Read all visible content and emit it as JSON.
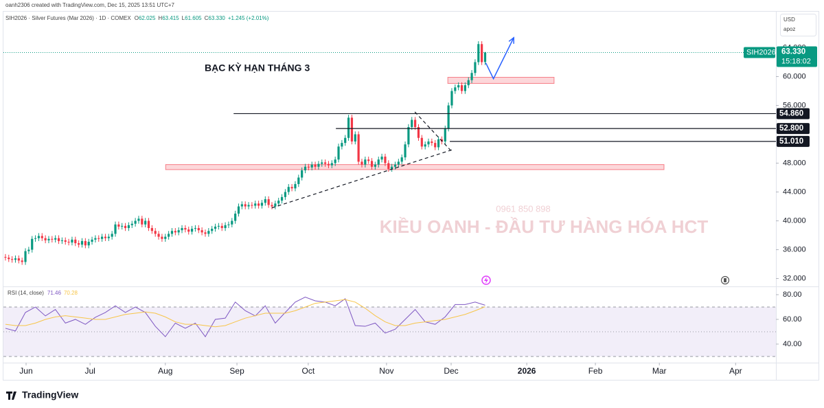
{
  "header": {
    "credit": "oanh2306 created with TradingView.com, Dec 15, 2025 13:51 UTC+7",
    "currency": "USD",
    "unit": "apoz",
    "brand": "TradingView"
  },
  "chart_data": [
    {
      "type": "candlestick",
      "symbol": "SIH2026 · Silver Futures (Mar 2026) · 1D · COMEX",
      "ohlc": [
        {
          "key": "O",
          "value": "62.025"
        },
        {
          "key": "H",
          "value": "63.415"
        },
        {
          "key": "L",
          "value": "61.605"
        },
        {
          "key": "C",
          "value": "63.330"
        }
      ],
      "change": "+1.245 (+2.01%)",
      "annotation": "BẠC KỲ HẠN THÁNG 3",
      "watermark": [
        "0961 850 898",
        "KIỀU OANH - ĐẦU TƯ HÀNG HÓA HCT"
      ],
      "ticker": "SIH2026",
      "price_label": "63.330",
      "countdown": "15:18:02",
      "up_color": "#089981",
      "down_color": "#f23645",
      "open": [
        35.0,
        34.9,
        34.7,
        34.6,
        34.8,
        34.5,
        34.3,
        35.8,
        36.0,
        37.5,
        37.6,
        37.9,
        37.6,
        37.3,
        37.5,
        37.4,
        37.6,
        37.2,
        37.3,
        37.1,
        37.0,
        37.4,
        36.9,
        36.7,
        37.2,
        36.6,
        37.1,
        37.4,
        37.6,
        37.5,
        37.8,
        37.6,
        37.8,
        38.2,
        39.5,
        39.2,
        39.3,
        39.0,
        39.4,
        39.6,
        40.0,
        40.3,
        39.5,
        40.0,
        39.0,
        38.6,
        38.2,
        37.8,
        37.5,
        37.8,
        38.2,
        38.6,
        38.4,
        38.7,
        39.0,
        38.8,
        38.5,
        38.9,
        39.0,
        38.7,
        38.4,
        38.2,
        38.6,
        38.9,
        39.2,
        39.3,
        39.0,
        39.4,
        39.5,
        40.0,
        41.0,
        42.0,
        42.3,
        42.0,
        42.2,
        42.1,
        42.4,
        42.1,
        42.5,
        43.0,
        42.2,
        42.0,
        42.4,
        42.8,
        43.3,
        44.0,
        44.7,
        44.5,
        45.1,
        46.0,
        47.0,
        47.5,
        47.4,
        47.8,
        47.5,
        47.9,
        48.1,
        47.9,
        47.7,
        48.0,
        48.5,
        50.3,
        50.8,
        51.5,
        54.3,
        51.0,
        52.0,
        48.2,
        47.8,
        48.5,
        48.3,
        47.5,
        47.8,
        48.5,
        48.9,
        48.0,
        47.2,
        47.5,
        47.8,
        48.2,
        48.8,
        50.6,
        53.0,
        54.0,
        53.0,
        51.5,
        50.3,
        50.6,
        51.0,
        50.8,
        50.2,
        51.3,
        51.0,
        52.8,
        56.0,
        58.0,
        58.5,
        58.8,
        58.0,
        58.8,
        59.5,
        60.5,
        62.0,
        64.5,
        62.025
      ],
      "high": [
        35.4,
        35.3,
        35.1,
        35.2,
        35.2,
        34.9,
        36.2,
        36.4,
        37.9,
        38.0,
        38.3,
        38.3,
        38.0,
        37.9,
        37.9,
        38.0,
        38.0,
        37.7,
        37.7,
        37.5,
        37.8,
        37.8,
        37.3,
        37.6,
        37.6,
        37.5,
        37.8,
        38.0,
        38.0,
        38.2,
        38.2,
        38.2,
        38.6,
        39.9,
        39.9,
        39.7,
        39.7,
        39.8,
        40.0,
        40.4,
        40.7,
        40.7,
        40.4,
        40.4,
        39.4,
        39.0,
        38.6,
        38.2,
        38.2,
        38.6,
        39.0,
        39.0,
        39.1,
        39.4,
        39.4,
        39.2,
        39.3,
        39.4,
        39.4,
        39.1,
        38.8,
        39.0,
        39.3,
        39.6,
        39.7,
        39.7,
        39.8,
        39.9,
        40.4,
        41.4,
        42.4,
        42.7,
        42.7,
        42.6,
        42.6,
        42.8,
        42.8,
        42.9,
        43.4,
        43.4,
        42.6,
        42.8,
        43.2,
        43.7,
        44.4,
        45.1,
        45.1,
        45.5,
        46.4,
        47.4,
        47.9,
        47.9,
        48.2,
        48.2,
        48.3,
        48.5,
        48.5,
        48.3,
        48.4,
        48.9,
        50.7,
        51.2,
        51.9,
        54.7,
        54.7,
        52.4,
        52.4,
        48.6,
        48.9,
        48.9,
        48.7,
        48.2,
        48.9,
        49.3,
        49.3,
        48.4,
        47.9,
        48.2,
        48.6,
        49.2,
        51.0,
        53.4,
        54.4,
        54.4,
        53.4,
        51.9,
        51.0,
        51.4,
        51.4,
        51.2,
        51.7,
        51.7,
        53.2,
        56.4,
        58.4,
        58.9,
        59.2,
        59.2,
        59.2,
        59.9,
        60.9,
        62.4,
        64.9,
        64.9,
        63.415
      ],
      "low": [
        34.5,
        34.3,
        34.2,
        34.2,
        34.1,
        33.9,
        33.9,
        35.4,
        35.6,
        37.1,
        37.2,
        37.2,
        36.9,
        36.9,
        37.0,
        37.0,
        36.8,
        36.8,
        36.7,
        36.6,
        36.6,
        36.5,
        36.3,
        36.3,
        36.2,
        36.2,
        36.7,
        37.0,
        37.1,
        37.1,
        37.2,
        37.2,
        37.4,
        37.8,
        38.8,
        38.8,
        38.6,
        38.6,
        39.0,
        39.2,
        39.6,
        39.1,
        39.1,
        38.6,
        38.2,
        37.8,
        37.4,
        37.1,
        37.1,
        37.4,
        37.8,
        38.0,
        38.0,
        38.3,
        38.4,
        38.1,
        38.1,
        38.5,
        38.3,
        38.0,
        37.8,
        37.8,
        38.2,
        38.5,
        38.8,
        38.6,
        38.6,
        39.0,
        39.1,
        39.6,
        40.6,
        41.6,
        41.6,
        41.6,
        41.7,
        41.7,
        41.7,
        41.7,
        42.1,
        41.8,
        41.6,
        41.6,
        42.0,
        42.4,
        42.9,
        43.6,
        44.1,
        44.1,
        44.7,
        45.6,
        46.6,
        47.0,
        47.0,
        47.1,
        47.1,
        47.5,
        47.5,
        47.3,
        47.3,
        47.6,
        48.1,
        49.9,
        50.4,
        51.1,
        50.6,
        50.6,
        47.8,
        47.4,
        47.4,
        47.9,
        47.1,
        47.1,
        47.4,
        48.1,
        47.6,
        46.8,
        46.8,
        47.1,
        47.4,
        47.8,
        48.4,
        50.2,
        52.6,
        52.6,
        51.1,
        49.9,
        49.9,
        50.2,
        50.4,
        49.8,
        49.8,
        50.6,
        50.6,
        52.4,
        55.6,
        57.6,
        58.1,
        57.6,
        57.6,
        58.4,
        59.1,
        60.1,
        61.6,
        61.6,
        61.605
      ],
      "close": [
        34.9,
        34.7,
        34.6,
        34.8,
        34.5,
        34.3,
        35.8,
        36.0,
        37.5,
        37.6,
        37.9,
        37.6,
        37.3,
        37.5,
        37.4,
        37.6,
        37.2,
        37.3,
        37.1,
        37.0,
        37.4,
        36.9,
        36.7,
        37.2,
        36.6,
        37.1,
        37.4,
        37.6,
        37.5,
        37.8,
        37.6,
        37.8,
        38.2,
        39.5,
        39.2,
        39.3,
        39.0,
        39.4,
        39.6,
        40.0,
        40.3,
        39.5,
        40.0,
        39.0,
        38.6,
        38.2,
        37.8,
        37.5,
        37.8,
        38.2,
        38.6,
        38.4,
        38.7,
        39.0,
        38.8,
        38.5,
        38.9,
        39.0,
        38.7,
        38.4,
        38.2,
        38.6,
        38.9,
        39.2,
        39.3,
        39.0,
        39.4,
        39.5,
        40.0,
        41.0,
        42.0,
        42.3,
        42.0,
        42.2,
        42.1,
        42.4,
        42.1,
        42.5,
        43.0,
        42.2,
        42.0,
        42.4,
        42.8,
        43.3,
        44.0,
        44.7,
        44.5,
        45.1,
        46.0,
        47.0,
        47.5,
        47.4,
        47.8,
        47.5,
        47.9,
        48.1,
        47.9,
        47.7,
        48.0,
        48.5,
        50.3,
        50.8,
        51.5,
        54.3,
        51.0,
        52.0,
        48.2,
        47.8,
        48.5,
        48.3,
        47.5,
        47.8,
        48.5,
        48.9,
        48.0,
        47.2,
        47.5,
        47.8,
        48.2,
        48.8,
        50.6,
        53.0,
        54.0,
        53.0,
        51.5,
        50.3,
        50.6,
        51.0,
        50.8,
        50.2,
        51.3,
        51.0,
        52.8,
        56.0,
        58.0,
        58.5,
        58.8,
        58.0,
        58.8,
        59.5,
        60.5,
        62.0,
        64.5,
        62.0,
        63.33
      ],
      "xlim": [
        -0.6,
        231.3
      ],
      "xticks": [
        {
          "value": 6.2,
          "label": "Jun"
        },
        {
          "value": 25.4,
          "label": "Jul"
        },
        {
          "value": 48.0,
          "label": "Aug"
        },
        {
          "value": 69.5,
          "label": "Sep"
        },
        {
          "value": 90.9,
          "label": "Oct"
        },
        {
          "value": 114.4,
          "label": "Nov"
        },
        {
          "value": 133.8,
          "label": "Dec"
        },
        {
          "value": 156.5,
          "label": "2026"
        },
        {
          "value": 177.1,
          "label": "Feb"
        },
        {
          "value": 196.3,
          "label": "Mar"
        },
        {
          "value": 219.2,
          "label": "Apr"
        }
      ],
      "ylim": [
        31.1,
        68.9
      ],
      "yticks": [
        {
          "value": 32,
          "label": "32.000"
        },
        {
          "value": 36,
          "label": "36.000"
        },
        {
          "value": 40,
          "label": "40.000"
        },
        {
          "value": 44,
          "label": "44.000"
        },
        {
          "value": 48,
          "label": "48.000"
        },
        {
          "value": 56,
          "label": "56.000"
        },
        {
          "value": 60,
          "label": "60.000"
        },
        {
          "value": 64,
          "label": "64.000"
        }
      ],
      "hlines": [
        {
          "value": 54.86,
          "label": "54.860",
          "x_start": 68.5
        },
        {
          "value": 52.8,
          "label": "52.800",
          "x_start": 99.2
        },
        {
          "value": 51.01,
          "label": "51.010",
          "x_start": 133.4
        }
      ],
      "zones": [
        {
          "x": [
            48.1,
            197.7
          ],
          "y": [
            47.1,
            47.8
          ]
        },
        {
          "x": [
            132.8,
            164.7
          ],
          "y": [
            59.05,
            59.9
          ]
        }
      ],
      "trendlines": [
        {
          "x": [
            80,
            134.4
          ],
          "y": [
            41.8,
            49.9
          ]
        },
        {
          "x": [
            122.9,
            134.2
          ],
          "y": [
            55.1,
            49.5
          ]
        }
      ],
      "arrow": {
        "x": [
          144.2,
          146.5,
          152.6
        ],
        "y": [
          61.9,
          59.7,
          65.4
        ],
        "color": "#2962ff"
      }
    },
    {
      "type": "line",
      "title": "RSI (14, close)",
      "x": [
        0,
        3,
        6,
        9,
        12,
        15,
        18,
        21,
        24,
        27,
        30,
        33,
        36,
        39,
        42,
        45,
        48,
        51,
        54,
        57,
        60,
        63,
        66,
        69,
        72,
        75,
        78,
        81,
        84,
        87,
        90,
        93,
        96,
        99,
        102,
        105,
        108,
        111,
        114,
        117,
        120,
        123,
        126,
        129,
        132,
        135,
        138,
        141,
        144
      ],
      "series": [
        {
          "color": "#7e57c2",
          "values": [
            52.8,
            50.6,
            65.6,
            70,
            62.8,
            68,
            57,
            60,
            56,
            61.7,
            65.6,
            71,
            65.6,
            70,
            65.6,
            54.4,
            46,
            57,
            52.8,
            57,
            46,
            60,
            61,
            74,
            67,
            62.8,
            71,
            57,
            65.6,
            74,
            78,
            75,
            74,
            71,
            76.7,
            55,
            54.4,
            57,
            48.9,
            52,
            60,
            68,
            58,
            56,
            62,
            72,
            72,
            74,
            71.46
          ]
        },
        {
          "color": "#f7c548",
          "values": [
            56,
            55,
            55,
            57,
            60,
            62,
            63,
            62,
            61,
            60,
            60,
            62,
            64,
            65,
            66,
            65,
            62,
            58,
            56,
            56,
            55,
            54,
            55,
            58,
            61,
            63,
            65,
            65,
            65,
            67,
            70,
            73,
            74,
            75,
            76,
            74,
            69,
            63,
            58,
            55,
            55,
            57,
            58,
            59,
            60,
            62,
            64,
            67,
            70.28
          ]
        }
      ],
      "xlim": [
        -0.6,
        231.3
      ],
      "ylim": [
        28.3,
        85
      ],
      "yticks": [
        {
          "value": 40,
          "label": "40.00"
        },
        {
          "value": 60,
          "label": "60.00"
        },
        {
          "value": 80,
          "label": "80.00"
        }
      ],
      "bands": {
        "upper": 70,
        "middle": 50,
        "lower": 30
      }
    }
  ]
}
